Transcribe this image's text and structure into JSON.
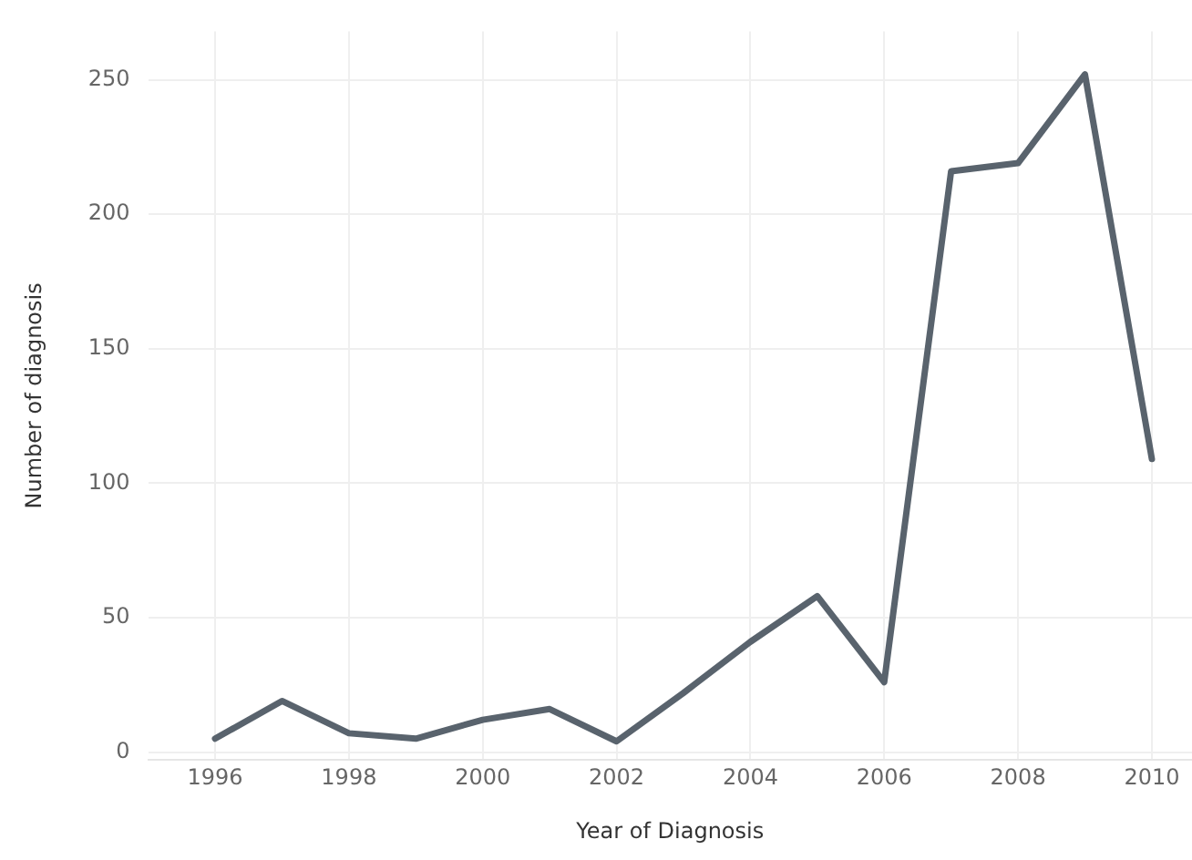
{
  "chart_data": {
    "type": "line",
    "xlabel": "Year of Diagnosis",
    "ylabel": "Number of diagnosis",
    "x": [
      1996,
      1997,
      1998,
      1999,
      2000,
      2001,
      2002,
      2003,
      2004,
      2005,
      2006,
      2007,
      2008,
      2009,
      2010
    ],
    "series": [
      {
        "color": "#59636d",
        "values": [
          5,
          19,
          7,
          5,
          12,
          16,
          4,
          22,
          41,
          58,
          26,
          216,
          219,
          252,
          109
        ]
      }
    ],
    "xlim": [
      1995,
      2010.6
    ],
    "xticks": [
      1996,
      1998,
      2000,
      2002,
      2004,
      2006,
      2008,
      2010
    ],
    "ylim": [
      -3,
      268
    ],
    "yticks": [
      0,
      50,
      100,
      150,
      200,
      250
    ],
    "grid": true,
    "legend": false,
    "marker": "none",
    "line_style": "solid"
  }
}
